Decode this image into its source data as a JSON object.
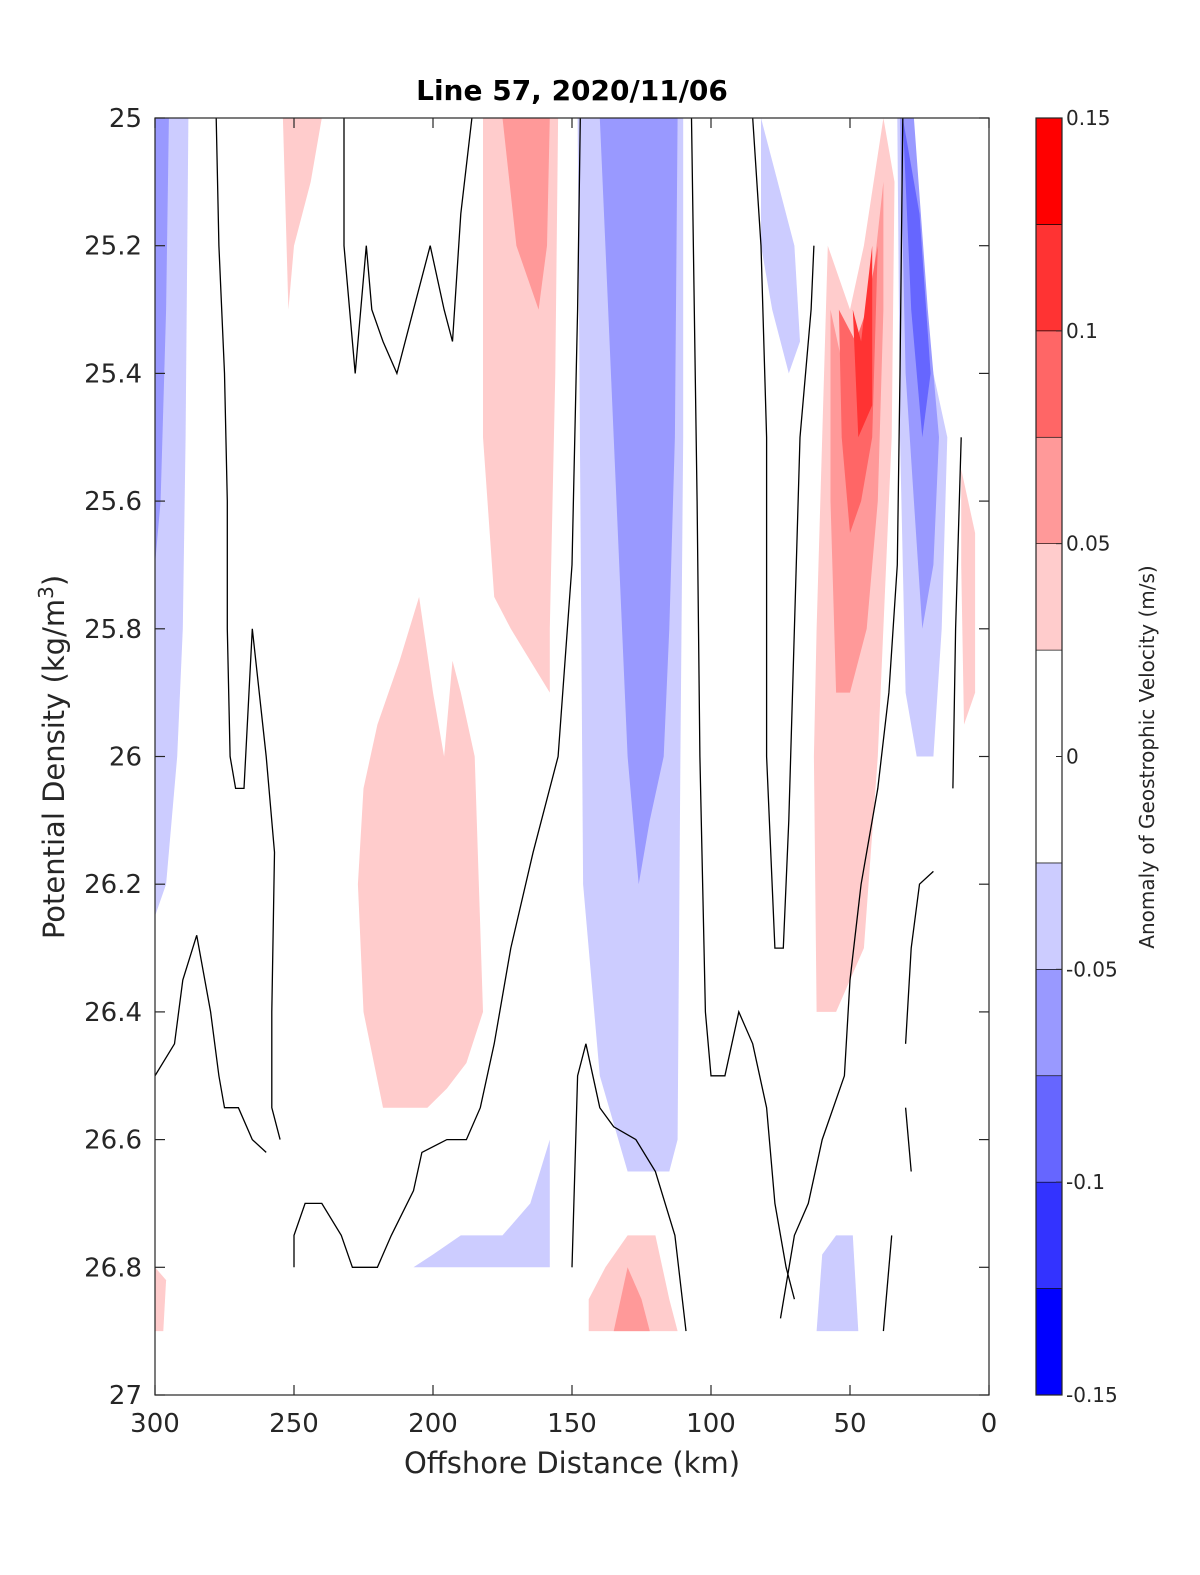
{
  "chart_data": {
    "type": "filled-contour",
    "title": "Line 57, 2020/11/06",
    "xlabel": "Offshore Distance (km)",
    "ylabel": "Potential Density (kg/m³)",
    "ylabel_parts": {
      "main": "Potential Density (kg/m",
      "sup": "3",
      "end": ")"
    },
    "xlim": [
      300,
      0
    ],
    "ylim": [
      27,
      25
    ],
    "y_reversed": true,
    "x_ticks": [
      300,
      250,
      200,
      150,
      100,
      50,
      0
    ],
    "x_tick_labels": [
      "300",
      "250",
      "200",
      "150",
      "100",
      "50",
      "0"
    ],
    "y_ticks": [
      25,
      25.2,
      25.4,
      25.6,
      25.8,
      26,
      26.2,
      26.4,
      26.6,
      26.8,
      27
    ],
    "y_tick_labels": [
      "25",
      "25.2",
      "25.4",
      "25.6",
      "25.8",
      "26",
      "26.2",
      "26.4",
      "26.6",
      "26.8",
      "27"
    ],
    "colorbar": {
      "label": "Anomaly of Geostrophic Velocity (m/s)",
      "range": [
        -0.15,
        0.15
      ],
      "ticks": [
        0.15,
        0.1,
        0.05,
        0,
        -0.05,
        -0.1,
        -0.15
      ],
      "tick_labels": [
        "0.15",
        "0.1",
        "0.05",
        "0",
        "-0.05",
        "-0.1",
        "-0.15"
      ],
      "levels": [
        -0.15,
        -0.125,
        -0.1,
        -0.075,
        -0.05,
        -0.025,
        0.025,
        0.05,
        0.075,
        0.1,
        0.125,
        0.15
      ],
      "colors": [
        "#0000ff",
        "#3333ff",
        "#6666ff",
        "#9999ff",
        "#ccccff",
        "#ffffff",
        "#ffcccc",
        "#ff9999",
        "#ff6666",
        "#ff3333",
        "#ff0000"
      ]
    },
    "zero_contour_color": "#000000",
    "regions": [
      {
        "level": -0.05,
        "color": "#ccccff",
        "pts": [
          [
            300,
            25
          ],
          [
            288,
            25
          ],
          [
            289,
            25.5
          ],
          [
            290,
            25.8
          ],
          [
            292,
            26
          ],
          [
            296,
            26.2
          ],
          [
            300,
            26.25
          ]
        ]
      },
      {
        "level": -0.075,
        "color": "#9999ff",
        "pts": [
          [
            300,
            25
          ],
          [
            295,
            25
          ],
          [
            296,
            25.3
          ],
          [
            298,
            25.6
          ],
          [
            300,
            25.7
          ]
        ]
      },
      {
        "level": 0.05,
        "color": "#ffcccc",
        "pts": [
          [
            254,
            25
          ],
          [
            240,
            25
          ],
          [
            244,
            25.1
          ],
          [
            250,
            25.2
          ],
          [
            252,
            25.3
          ]
        ]
      },
      {
        "level": 0.05,
        "color": "#ffcccc",
        "pts": [
          [
            182,
            25
          ],
          [
            155,
            25
          ],
          [
            156,
            25.4
          ],
          [
            158,
            25.8
          ],
          [
            158,
            25.9
          ],
          [
            165,
            25.85
          ],
          [
            172,
            25.8
          ],
          [
            178,
            25.75
          ],
          [
            182,
            25.5
          ]
        ]
      },
      {
        "level": 0.075,
        "color": "#ff9999",
        "pts": [
          [
            175,
            25
          ],
          [
            158,
            25
          ],
          [
            159,
            25.2
          ],
          [
            162,
            25.3
          ],
          [
            170,
            25.2
          ]
        ]
      },
      {
        "level": 0.05,
        "color": "#ffcccc",
        "pts": [
          [
            225,
            26.05
          ],
          [
            220,
            25.95
          ],
          [
            212,
            25.85
          ],
          [
            205,
            25.75
          ],
          [
            200,
            25.9
          ],
          [
            196,
            26
          ],
          [
            193,
            25.85
          ],
          [
            190,
            25.9
          ],
          [
            185,
            26
          ],
          [
            182,
            26.4
          ],
          [
            188,
            26.48
          ],
          [
            195,
            26.52
          ],
          [
            202,
            26.55
          ],
          [
            210,
            26.55
          ],
          [
            218,
            26.55
          ],
          [
            225,
            26.4
          ],
          [
            227,
            26.2
          ]
        ]
      },
      {
        "level": -0.05,
        "color": "#ccccff",
        "pts": [
          [
            148,
            25
          ],
          [
            110,
            25
          ],
          [
            110,
            25.5
          ],
          [
            111,
            26
          ],
          [
            112,
            26.6
          ],
          [
            115,
            26.65
          ],
          [
            120,
            26.65
          ],
          [
            125,
            26.65
          ],
          [
            130,
            26.65
          ],
          [
            140,
            26.5
          ],
          [
            146,
            26.2
          ]
        ]
      },
      {
        "level": -0.075,
        "color": "#9999ff",
        "pts": [
          [
            140,
            25
          ],
          [
            112,
            25
          ],
          [
            113,
            25.5
          ],
          [
            115,
            25.8
          ],
          [
            117,
            26
          ],
          [
            122,
            26.1
          ],
          [
            126,
            26.2
          ],
          [
            130,
            26
          ],
          [
            135,
            25.5
          ],
          [
            138,
            25.2
          ]
        ]
      },
      {
        "level": -0.05,
        "color": "#ccccff",
        "pts": [
          [
            82,
            25
          ],
          [
            70,
            25.2
          ],
          [
            68,
            25.35
          ],
          [
            72,
            25.4
          ],
          [
            78,
            25.3
          ],
          [
            82,
            25.2
          ]
        ]
      },
      {
        "level": 0.05,
        "color": "#ffcccc",
        "pts": [
          [
            58,
            25.2
          ],
          [
            50,
            25.3
          ],
          [
            45,
            25.2
          ],
          [
            38,
            25
          ],
          [
            34,
            25.1
          ],
          [
            35,
            25.5
          ],
          [
            40,
            26
          ],
          [
            45,
            26.3
          ],
          [
            55,
            26.4
          ],
          [
            62,
            26.4
          ],
          [
            63,
            26
          ],
          [
            62,
            25.8
          ],
          [
            60,
            25.5
          ]
        ]
      },
      {
        "level": 0.075,
        "color": "#ff9999",
        "pts": [
          [
            57,
            25.3
          ],
          [
            52,
            25.4
          ],
          [
            48,
            25.45
          ],
          [
            43,
            25.3
          ],
          [
            38,
            25.1
          ],
          [
            38,
            25.3
          ],
          [
            40,
            25.6
          ],
          [
            44,
            25.8
          ],
          [
            50,
            25.9
          ],
          [
            55,
            25.9
          ],
          [
            57,
            25.6
          ]
        ]
      },
      {
        "level": 0.1,
        "color": "#ff6666",
        "pts": [
          [
            54,
            25.3
          ],
          [
            48,
            25.35
          ],
          [
            44,
            25.3
          ],
          [
            40,
            25.2
          ],
          [
            42,
            25.5
          ],
          [
            46,
            25.6
          ],
          [
            50,
            25.65
          ],
          [
            53,
            25.5
          ]
        ]
      },
      {
        "level": 0.125,
        "color": "#ff3333",
        "pts": [
          [
            49,
            25.3
          ],
          [
            46,
            25.35
          ],
          [
            42,
            25.2
          ],
          [
            42,
            25.45
          ],
          [
            47,
            25.5
          ]
        ]
      },
      {
        "level": -0.05,
        "color": "#ccccff",
        "pts": [
          [
            33,
            25
          ],
          [
            28,
            25
          ],
          [
            24,
            25.3
          ],
          [
            20,
            25.4
          ],
          [
            15,
            25.5
          ],
          [
            17,
            25.8
          ],
          [
            20,
            26
          ],
          [
            26,
            26
          ],
          [
            30,
            25.9
          ],
          [
            32,
            25.5
          ]
        ]
      },
      {
        "level": -0.075,
        "color": "#9999ff",
        "pts": [
          [
            32,
            25
          ],
          [
            27,
            25
          ],
          [
            22,
            25.3
          ],
          [
            18,
            25.5
          ],
          [
            20,
            25.7
          ],
          [
            24,
            25.8
          ],
          [
            27,
            25.6
          ],
          [
            30,
            25.4
          ]
        ]
      },
      {
        "level": -0.1,
        "color": "#6666ff",
        "pts": [
          [
            31,
            25
          ],
          [
            25,
            25.15
          ],
          [
            21,
            25.4
          ],
          [
            24,
            25.5
          ],
          [
            28,
            25.3
          ]
        ]
      },
      {
        "level": 0.05,
        "color": "#ffcccc",
        "pts": [
          [
            10,
            25.55
          ],
          [
            5,
            25.65
          ],
          [
            5,
            25.9
          ],
          [
            9,
            25.95
          ],
          [
            10,
            25.7
          ]
        ]
      },
      {
        "level": -0.05,
        "color": "#ccccff",
        "pts": [
          [
            207,
            26.8
          ],
          [
            200,
            26.78
          ],
          [
            190,
            26.75
          ],
          [
            175,
            26.75
          ],
          [
            165,
            26.7
          ],
          [
            158,
            26.6
          ],
          [
            158,
            26.8
          ],
          [
            180,
            26.8
          ]
        ]
      },
      {
        "level": 0.05,
        "color": "#ffcccc",
        "pts": [
          [
            144,
            26.85
          ],
          [
            138,
            26.8
          ],
          [
            130,
            26.75
          ],
          [
            120,
            26.75
          ],
          [
            115,
            26.85
          ],
          [
            112,
            26.9
          ],
          [
            144,
            26.9
          ]
        ]
      },
      {
        "level": 0.075,
        "color": "#ff9999",
        "pts": [
          [
            135,
            26.9
          ],
          [
            130,
            26.8
          ],
          [
            125,
            26.85
          ],
          [
            122,
            26.9
          ]
        ]
      },
      {
        "level": -0.05,
        "color": "#ccccff",
        "pts": [
          [
            62,
            26.9
          ],
          [
            60,
            26.78
          ],
          [
            55,
            26.75
          ],
          [
            49,
            26.75
          ],
          [
            47,
            26.9
          ]
        ]
      },
      {
        "level": 0.05,
        "color": "#ffcccc",
        "pts": [
          [
            300,
            26.8
          ],
          [
            296,
            26.82
          ],
          [
            297,
            26.9
          ],
          [
            300,
            26.9
          ]
        ]
      }
    ],
    "zero_contours": [
      [
        [
          278,
          25
        ],
        [
          277,
          25.2
        ],
        [
          275,
          25.4
        ],
        [
          274,
          25.6
        ],
        [
          274,
          25.8
        ],
        [
          273,
          26
        ],
        [
          271,
          26.05
        ],
        [
          268,
          26.05
        ],
        [
          265,
          25.8
        ],
        [
          260,
          26
        ],
        [
          257,
          26.15
        ],
        [
          258,
          26.4
        ],
        [
          258,
          26.55
        ],
        [
          255,
          26.6
        ]
      ],
      [
        [
          300,
          26.5
        ],
        [
          293,
          26.45
        ],
        [
          290,
          26.35
        ],
        [
          285,
          26.28
        ],
        [
          280,
          26.4
        ],
        [
          277,
          26.5
        ],
        [
          275,
          26.55
        ],
        [
          270,
          26.55
        ],
        [
          265,
          26.6
        ],
        [
          260,
          26.62
        ]
      ],
      [
        [
          250,
          26.8
        ],
        [
          250,
          26.75
        ],
        [
          246,
          26.7
        ],
        [
          240,
          26.7
        ],
        [
          233,
          26.75
        ],
        [
          229,
          26.8
        ],
        [
          220,
          26.8
        ],
        [
          215,
          26.75
        ],
        [
          207,
          26.68
        ],
        [
          204,
          26.62
        ],
        [
          195,
          26.6
        ],
        [
          188,
          26.6
        ],
        [
          183,
          26.55
        ],
        [
          178,
          26.45
        ],
        [
          172,
          26.3
        ],
        [
          164,
          26.15
        ],
        [
          155,
          26
        ],
        [
          150,
          25.7
        ],
        [
          148,
          25.3
        ],
        [
          147,
          25
        ]
      ],
      [
        [
          232,
          25
        ],
        [
          232,
          25.2
        ],
        [
          230,
          25.3
        ],
        [
          228,
          25.4
        ],
        [
          224,
          25.2
        ],
        [
          222,
          25.3
        ],
        [
          218,
          25.35
        ],
        [
          213,
          25.4
        ],
        [
          207,
          25.3
        ],
        [
          201,
          25.2
        ],
        [
          196,
          25.3
        ],
        [
          193,
          25.35
        ],
        [
          190,
          25.15
        ],
        [
          186,
          25
        ]
      ],
      [
        [
          150,
          26.8
        ],
        [
          148,
          26.5
        ],
        [
          145,
          26.45
        ],
        [
          140,
          26.55
        ],
        [
          135,
          26.58
        ],
        [
          127,
          26.6
        ],
        [
          120,
          26.65
        ],
        [
          113,
          26.75
        ],
        [
          109,
          26.9
        ]
      ],
      [
        [
          107,
          25
        ],
        [
          106,
          25.3
        ],
        [
          105,
          25.6
        ],
        [
          104,
          26
        ],
        [
          102,
          26.4
        ],
        [
          100,
          26.5
        ],
        [
          95,
          26.5
        ],
        [
          90,
          26.4
        ],
        [
          85,
          26.45
        ],
        [
          80,
          26.55
        ],
        [
          77,
          26.7
        ],
        [
          73,
          26.8
        ],
        [
          70,
          26.85
        ]
      ],
      [
        [
          85,
          25
        ],
        [
          82,
          25.2
        ],
        [
          80,
          25.5
        ],
        [
          80,
          26
        ],
        [
          77,
          26.3
        ],
        [
          74,
          26.3
        ],
        [
          72,
          26.1
        ],
        [
          70,
          25.8
        ],
        [
          68,
          25.5
        ],
        [
          64,
          25.3
        ],
        [
          63,
          25.2
        ]
      ],
      [
        [
          75,
          26.88
        ],
        [
          70,
          26.75
        ],
        [
          65,
          26.7
        ],
        [
          60,
          26.6
        ],
        [
          52,
          26.5
        ],
        [
          50,
          26.35
        ],
        [
          46,
          26.2
        ],
        [
          40,
          26.05
        ],
        [
          36,
          25.9
        ],
        [
          33,
          25.7
        ],
        [
          32,
          25.4
        ],
        [
          31,
          25
        ]
      ],
      [
        [
          38,
          26.9
        ],
        [
          35,
          26.75
        ]
      ],
      [
        [
          30,
          26.45
        ],
        [
          28,
          26.3
        ],
        [
          25,
          26.2
        ],
        [
          20,
          26.18
        ]
      ],
      [
        [
          30,
          26.55
        ],
        [
          28,
          26.65
        ]
      ],
      [
        [
          13,
          26.05
        ],
        [
          12,
          25.8
        ],
        [
          10,
          25.5
        ]
      ]
    ]
  }
}
